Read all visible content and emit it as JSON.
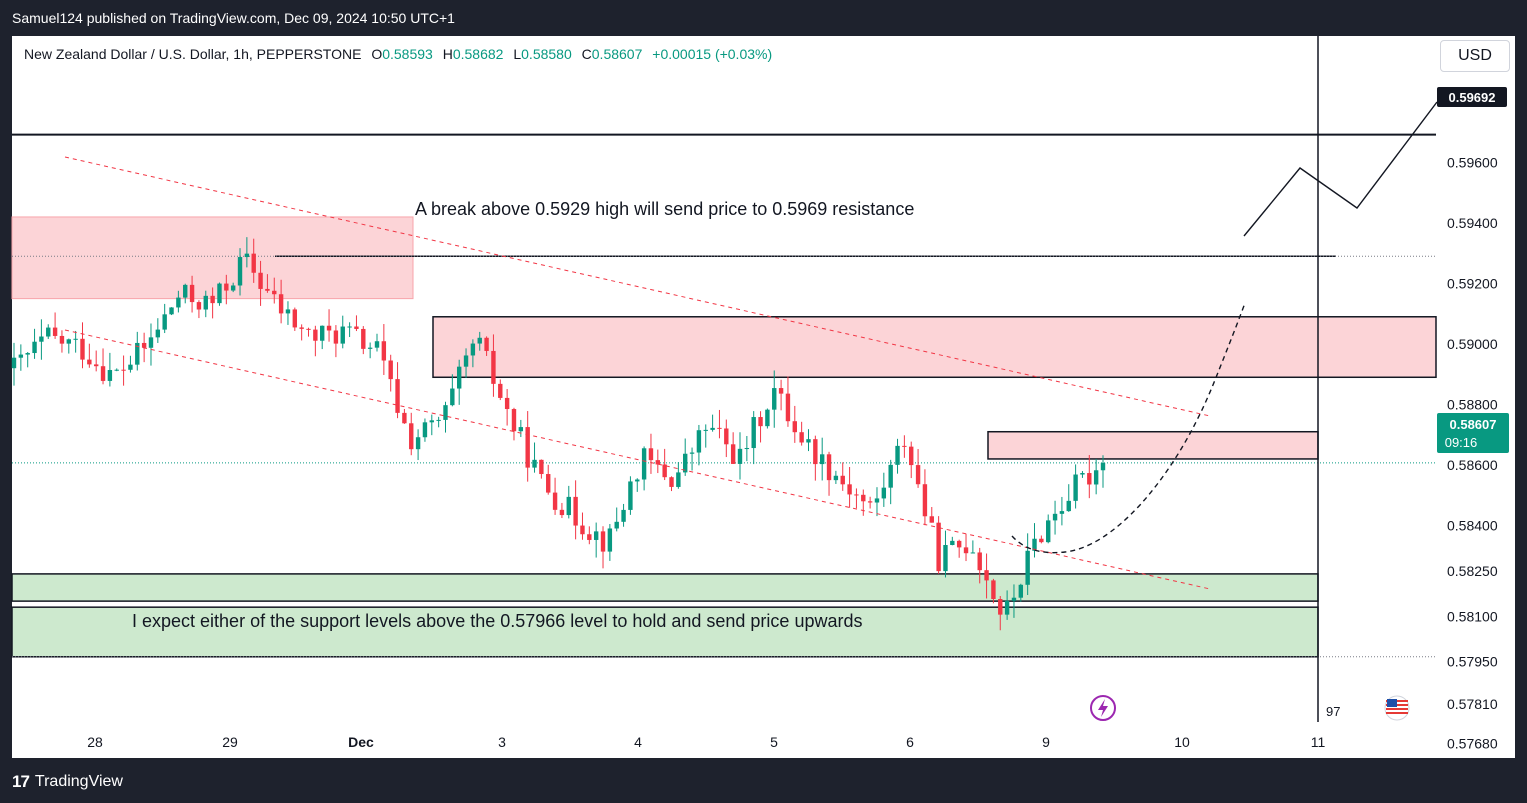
{
  "header": {
    "published": "Samuel124 published on TradingView.com, Dec 09, 2024 10:50 UTC+1"
  },
  "legend": {
    "symbol": "New Zealand Dollar / U.S. Dollar, 1h, PEPPERSTONE",
    "o_label": "O",
    "o": "0.58593",
    "h_label": "H",
    "h": "0.58682",
    "l_label": "L",
    "l": "0.58580",
    "c_label": "C",
    "c": "0.58607",
    "change": "+0.00015 (+0.03%)"
  },
  "currency_button": "USD",
  "annotations": {
    "top": "A break above 0.5929 high will send price to 0.5969 resistance",
    "bottom": "I expect either of the support levels above the 0.57966 level to hold and send price upwards"
  },
  "price_labels": {
    "target": "0.59692",
    "current": "0.58607",
    "countdown": "09:16"
  },
  "badge_97": "97",
  "footer": {
    "brand": "TradingView",
    "logo": "17"
  },
  "colors": {
    "up": "#089981",
    "down": "#f23645",
    "zone_red": "#fcd4d7",
    "zone_green": "#cde9ce",
    "current_price": "#089981"
  },
  "chart_data": {
    "type": "candlestick",
    "symbol": "NZDUSD",
    "timeframe": "1h",
    "x_ticks": [
      "28",
      "29",
      "Dec",
      "3",
      "4",
      "5",
      "6",
      "9",
      "10",
      "11"
    ],
    "y_ticks": [
      0.596,
      0.594,
      0.592,
      0.59,
      0.588,
      0.586,
      0.584,
      0.5825,
      0.581,
      0.5795,
      0.5781,
      0.5768
    ],
    "y_tick_labels": [
      "0.59600",
      "0.59400",
      "0.59200",
      "0.59000",
      "0.58800",
      "0.58600",
      "0.58400",
      "0.58250",
      "0.58100",
      "0.57950",
      "0.57810",
      "0.57680"
    ],
    "ylim": [
      0.576,
      0.5975
    ],
    "scale": "linear",
    "grid": false,
    "key_levels": [
      0.59692,
      0.5929,
      0.58607,
      0.57966
    ],
    "zones": [
      {
        "kind": "resistance",
        "from": 0.5915,
        "to": 0.5942
      },
      {
        "kind": "resistance",
        "from": 0.5889,
        "to": 0.5909
      },
      {
        "kind": "resistance",
        "from": 0.5862,
        "to": 0.5871
      },
      {
        "kind": "support",
        "from": 0.5815,
        "to": 0.5824
      },
      {
        "kind": "support",
        "from": 0.57966,
        "to": 0.5813
      }
    ],
    "price_path": [
      {
        "day": "28",
        "price": 0.5892
      },
      {
        "day": "28",
        "price": 0.5902
      },
      {
        "day": "28",
        "price": 0.5899
      },
      {
        "day": "29",
        "price": 0.5889
      },
      {
        "day": "29",
        "price": 0.5899
      },
      {
        "day": "29",
        "price": 0.5916
      },
      {
        "day": "29",
        "price": 0.5913
      },
      {
        "day": "Dec",
        "price": 0.5928
      },
      {
        "day": "Dec",
        "price": 0.5912
      },
      {
        "day": "Dec",
        "price": 0.5902
      },
      {
        "day": "Dec",
        "price": 0.5904
      },
      {
        "day": "Dec",
        "price": 0.5898
      },
      {
        "day": "3",
        "price": 0.5868
      },
      {
        "day": "3",
        "price": 0.5875
      },
      {
        "day": "3",
        "price": 0.5902
      },
      {
        "day": "3",
        "price": 0.5876
      },
      {
        "day": "4",
        "price": 0.5854
      },
      {
        "day": "4",
        "price": 0.5843
      },
      {
        "day": "4",
        "price": 0.5834
      },
      {
        "day": "5",
        "price": 0.5862
      },
      {
        "day": "5",
        "price": 0.5855
      },
      {
        "day": "5",
        "price": 0.5873
      },
      {
        "day": "6",
        "price": 0.5862
      },
      {
        "day": "6",
        "price": 0.5885
      },
      {
        "day": "6",
        "price": 0.5867
      },
      {
        "day": "6",
        "price": 0.5856
      },
      {
        "day": "6",
        "price": 0.5845
      },
      {
        "day": "6",
        "price": 0.5869
      },
      {
        "day": "9",
        "price": 0.5829
      },
      {
        "day": "9",
        "price": 0.5835
      },
      {
        "day": "9",
        "price": 0.5809
      },
      {
        "day": "9",
        "price": 0.5836
      },
      {
        "day": "9",
        "price": 0.5851
      },
      {
        "day": "9",
        "price": 0.58607
      }
    ]
  }
}
